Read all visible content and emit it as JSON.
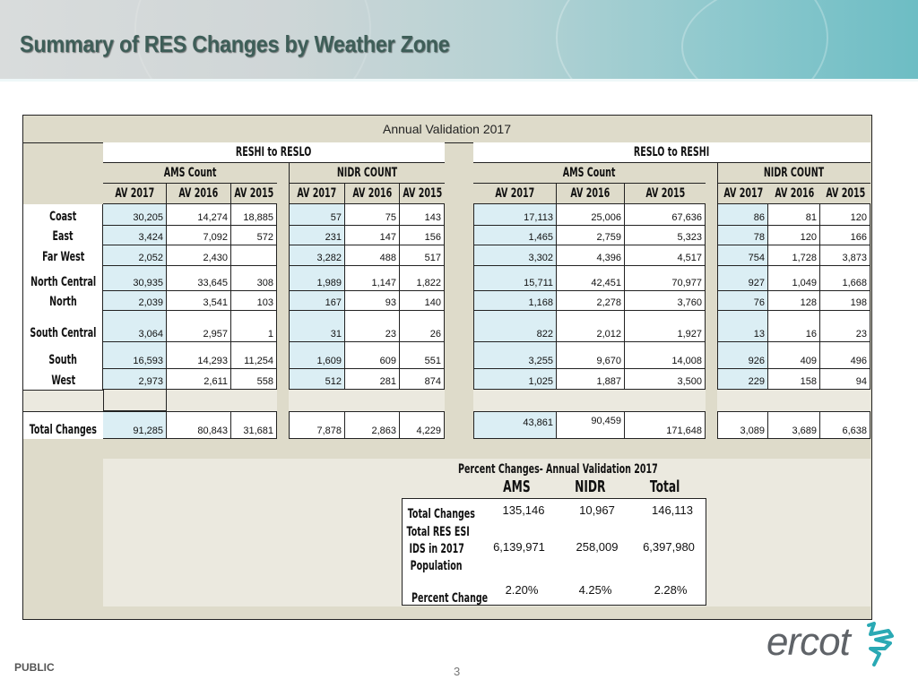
{
  "header": {
    "title": "Summary of RES Changes by Weather Zone"
  },
  "table": {
    "caption": "Annual Validation 2017",
    "groups": {
      "reshi_to_reslo": "RESHI to RESLO",
      "reslo_to_reshi": "RESLO to RESHI"
    },
    "subgroups": {
      "ams_count": "AMS Count",
      "nidr_count": "NIDR COUNT"
    },
    "columns": [
      "AV 2017",
      "AV 2016",
      "AV 2015"
    ],
    "rows": [
      {
        "zone": "Coast",
        "reshi_ams": [
          "30,205",
          "14,274",
          "18,885"
        ],
        "reshi_nidr": [
          "57",
          "75",
          "143"
        ],
        "reslo_ams": [
          "17,113",
          "25,006",
          "67,636"
        ],
        "reslo_nidr": [
          "86",
          "81",
          "120"
        ]
      },
      {
        "zone": "East",
        "reshi_ams": [
          "3,424",
          "7,092",
          "572"
        ],
        "reshi_nidr": [
          "231",
          "147",
          "156"
        ],
        "reslo_ams": [
          "1,465",
          "2,759",
          "5,323"
        ],
        "reslo_nidr": [
          "78",
          "120",
          "166"
        ]
      },
      {
        "zone": "Far West",
        "reshi_ams": [
          "2,052",
          "2,430",
          ""
        ],
        "reshi_nidr": [
          "3,282",
          "488",
          "517"
        ],
        "reslo_ams": [
          "3,302",
          "4,396",
          "4,517"
        ],
        "reslo_nidr": [
          "754",
          "1,728",
          "3,873"
        ]
      },
      {
        "zone": "North Central",
        "reshi_ams": [
          "30,935",
          "33,645",
          "308"
        ],
        "reshi_nidr": [
          "1,989",
          "1,147",
          "1,822"
        ],
        "reslo_ams": [
          "15,711",
          "42,451",
          "70,977"
        ],
        "reslo_nidr": [
          "927",
          "1,049",
          "1,668"
        ]
      },
      {
        "zone": "North",
        "reshi_ams": [
          "2,039",
          "3,541",
          "103"
        ],
        "reshi_nidr": [
          "167",
          "93",
          "140"
        ],
        "reslo_ams": [
          "1,168",
          "2,278",
          "3,760"
        ],
        "reslo_nidr": [
          "76",
          "128",
          "198"
        ]
      },
      {
        "zone": "South Central",
        "reshi_ams": [
          "3,064",
          "2,957",
          "1"
        ],
        "reshi_nidr": [
          "31",
          "23",
          "26"
        ],
        "reslo_ams": [
          "822",
          "2,012",
          "1,927"
        ],
        "reslo_nidr": [
          "13",
          "16",
          "23"
        ]
      },
      {
        "zone": "South",
        "reshi_ams": [
          "16,593",
          "14,293",
          "11,254"
        ],
        "reshi_nidr": [
          "1,609",
          "609",
          "551"
        ],
        "reslo_ams": [
          "3,255",
          "9,670",
          "14,008"
        ],
        "reslo_nidr": [
          "926",
          "409",
          "496"
        ]
      },
      {
        "zone": "West",
        "reshi_ams": [
          "2,973",
          "2,611",
          "558"
        ],
        "reshi_nidr": [
          "512",
          "281",
          "874"
        ],
        "reslo_ams": [
          "1,025",
          "1,887",
          "3,500"
        ],
        "reslo_nidr": [
          "229",
          "158",
          "94"
        ]
      }
    ],
    "totals": {
      "label": "Total Changes",
      "reshi_ams": [
        "91,285",
        "80,843",
        "31,681"
      ],
      "reshi_nidr": [
        "7,878",
        "2,863",
        "4,229"
      ],
      "reslo_ams": [
        "43,861",
        "90,459",
        "171,648"
      ],
      "reslo_nidr": [
        "3,089",
        "3,689",
        "6,638"
      ]
    }
  },
  "percent_changes": {
    "title": "Percent Changes- Annual Validation 2017",
    "headers": [
      "AMS",
      "NIDR",
      "Total"
    ],
    "rows": [
      {
        "label": "Total Changes",
        "values": [
          "135,146",
          "10,967",
          "146,113"
        ]
      },
      {
        "label_lines": [
          "Total RES ESI",
          "IDS in 2017",
          "Population"
        ],
        "values": [
          "6,139,971",
          "258,009",
          "6,397,980"
        ]
      },
      {
        "label": "Percent Change",
        "values": [
          "2.20%",
          "4.25%",
          "2.28%"
        ]
      }
    ]
  },
  "footer": {
    "classification": "PUBLIC",
    "page_number": "3",
    "logo_text": "ercot",
    "logo_color": "#2aa9b4"
  }
}
